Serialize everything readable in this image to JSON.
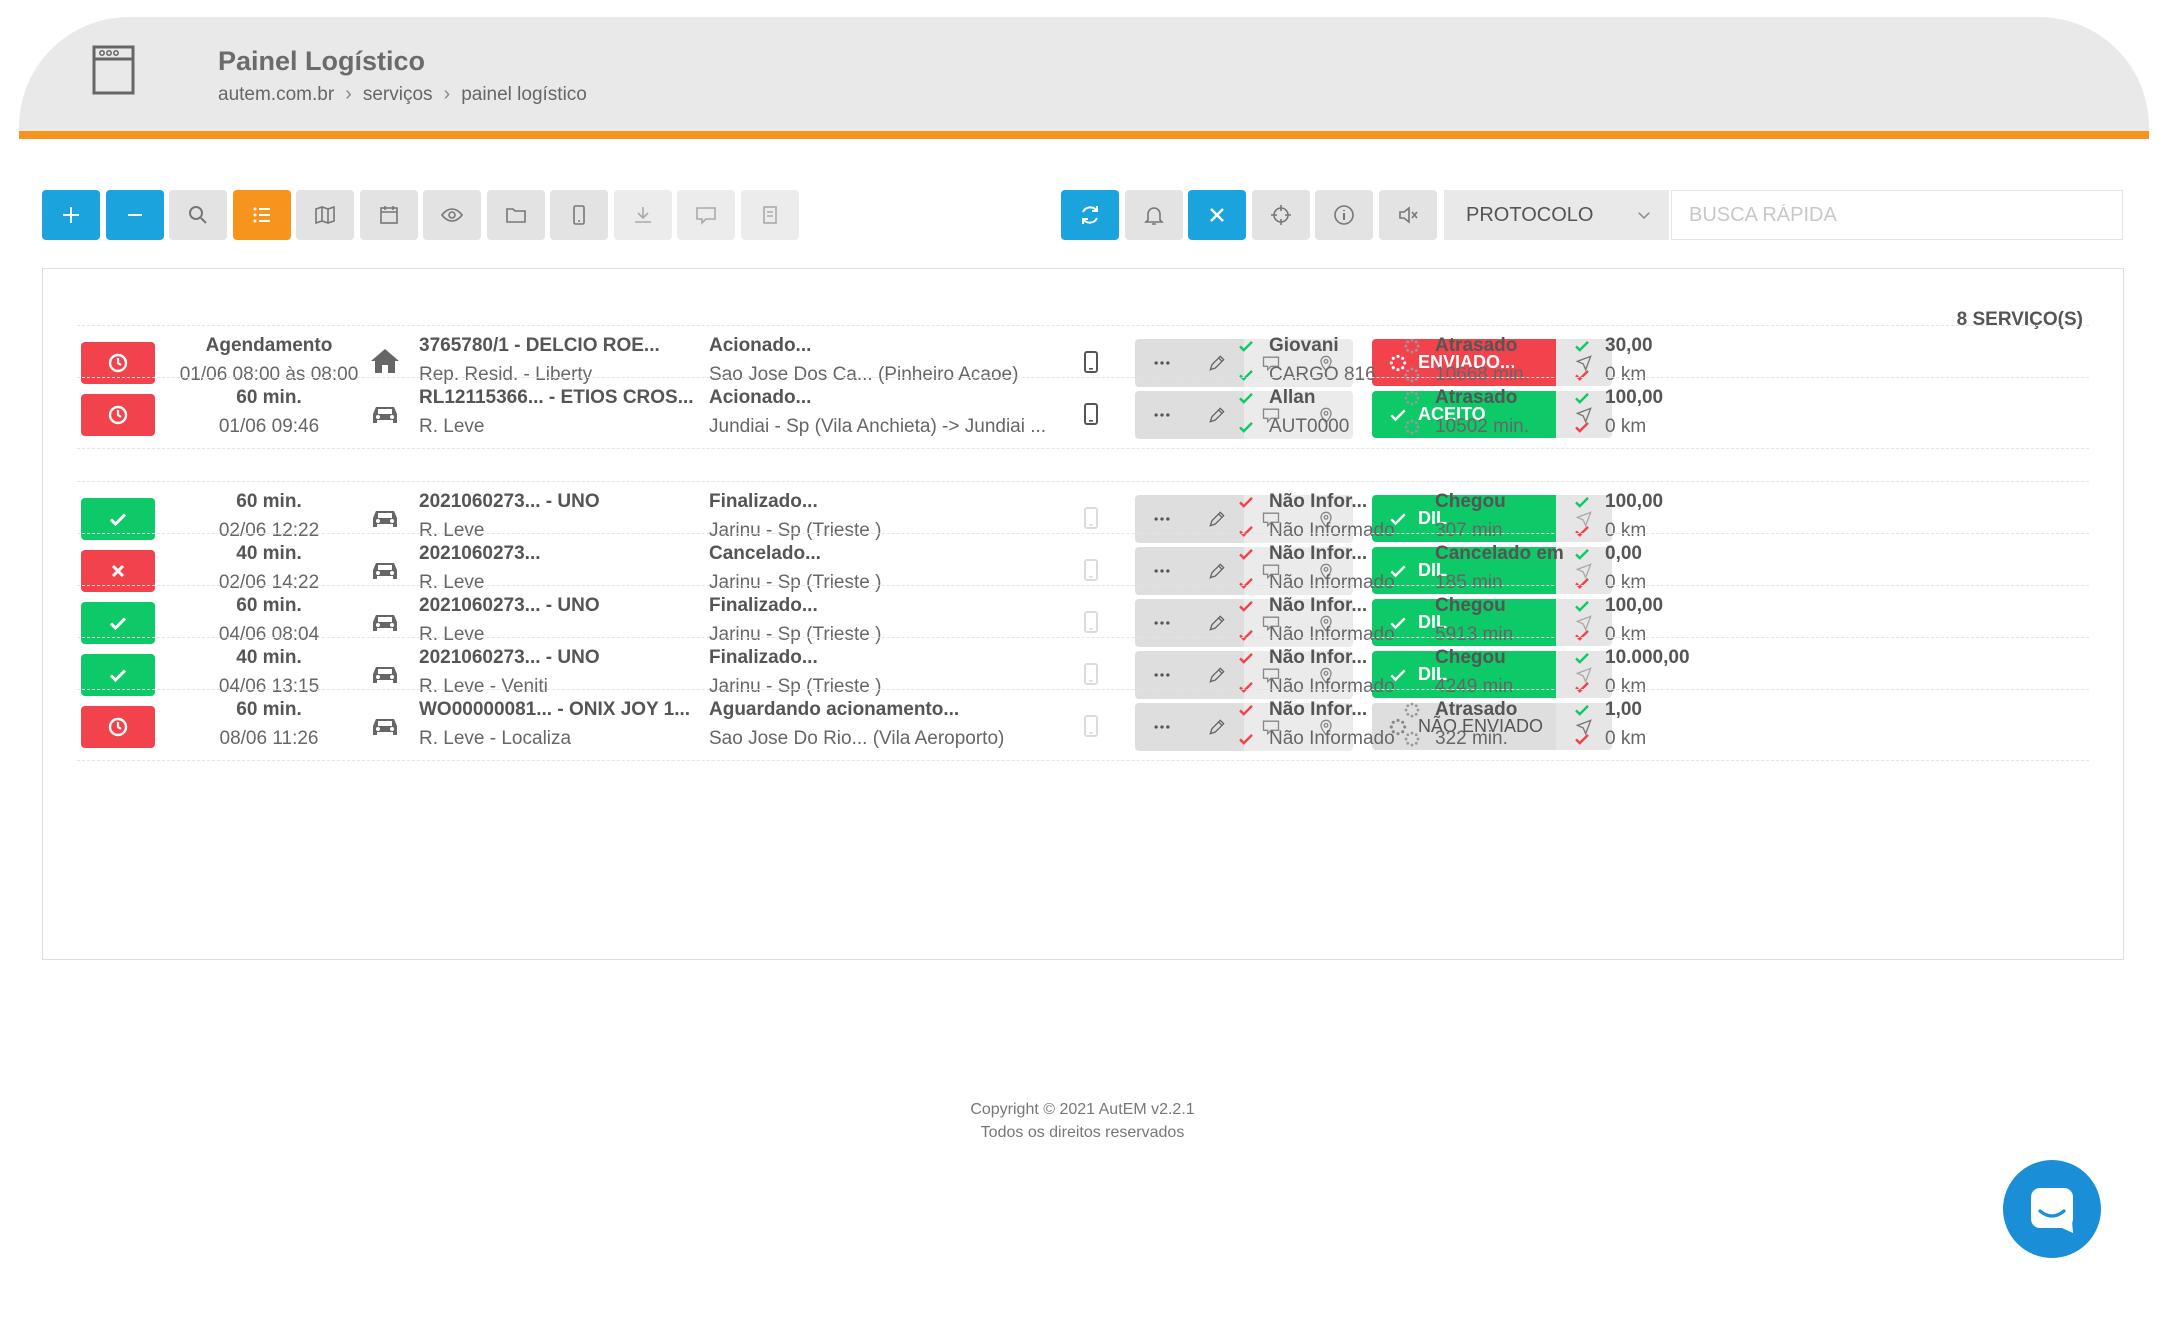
{
  "header": {
    "title": "Painel Logístico",
    "breadcrumb": [
      "autem.com.br",
      "serviços",
      "painel logístico"
    ]
  },
  "toolbar": {
    "left_buttons": [
      {
        "name": "add-button",
        "icon": "plus-icon",
        "variant": "blue"
      },
      {
        "name": "collapse-button",
        "icon": "minus-icon",
        "variant": "blue"
      },
      {
        "name": "search-button",
        "icon": "search-icon",
        "variant": "gray"
      },
      {
        "name": "list-view-button",
        "icon": "list-icon",
        "variant": "orange"
      },
      {
        "name": "map-button",
        "icon": "map-icon",
        "variant": "gray"
      },
      {
        "name": "calendar-button",
        "icon": "calendar-icon",
        "variant": "gray"
      },
      {
        "name": "view-button",
        "icon": "eye-icon",
        "variant": "gray"
      },
      {
        "name": "folder-button",
        "icon": "folder-icon",
        "variant": "gray"
      },
      {
        "name": "mobile-button",
        "icon": "mobile-icon",
        "variant": "gray"
      },
      {
        "name": "download-button",
        "icon": "download-icon",
        "variant": "light"
      },
      {
        "name": "message-button",
        "icon": "chat-icon",
        "variant": "light"
      },
      {
        "name": "document-button",
        "icon": "document-icon",
        "variant": "light"
      }
    ],
    "right_buttons": [
      {
        "name": "refresh-button",
        "icon": "refresh-icon",
        "variant": "blue"
      },
      {
        "name": "notifications-button",
        "icon": "bell-icon",
        "variant": "gray"
      },
      {
        "name": "clear-filter-button",
        "icon": "close-icon",
        "variant": "blue"
      },
      {
        "name": "locate-button",
        "icon": "crosshair-icon",
        "variant": "gray"
      },
      {
        "name": "info-button",
        "icon": "info-icon",
        "variant": "gray"
      },
      {
        "name": "mute-button",
        "icon": "mute-icon",
        "variant": "gray"
      }
    ],
    "protocol_select": "PROTOCOLO",
    "search_placeholder": "BUSCA RÁPIDA"
  },
  "panel": {
    "count_label": "8 SERVIÇO(S)",
    "rows": [
      {
        "status": "red",
        "status_icon": "clock-icon",
        "time_title": "Agendamento",
        "time_sub": "01/06 08:00 às 08:00",
        "type_icon": "home-icon",
        "service_title": "3765780/1 - DELCIO ROE...",
        "service_sub": "Rep. Resid. - Liberty",
        "state_title": "Acionado...",
        "state_sub": "Sao Jose Dos Ca... (Pinheiro Acaoe)",
        "phone_active": true,
        "dispatch": {
          "variant": "red",
          "icon": "spinner-icon",
          "label": "ENVIADO..."
        },
        "provider": [
          {
            "icon": "check-icon",
            "color": "#0ec968",
            "text": "Giovani",
            "bold": true
          },
          {
            "icon": "check-icon",
            "color": "#0ec968",
            "text": "CARGO 816",
            "bold": false
          }
        ],
        "eta": [
          {
            "icon": "spinner-icon",
            "color": "#999999",
            "text": "Atrasado",
            "bold": true
          },
          {
            "icon": "spinner-icon",
            "color": "#999999",
            "text": "10668 min.",
            "bold": false
          }
        ],
        "value": [
          {
            "icon": "check-icon",
            "color": "#0ec968",
            "text": "30,00",
            "bold": true
          },
          {
            "icon": "check-icon",
            "color": "#f2434d",
            "text": "0 km",
            "bold": false
          }
        ]
      },
      {
        "status": "red",
        "status_icon": "clock-icon",
        "time_title": "60 min.",
        "time_sub": "01/06 09:46",
        "type_icon": "car-icon",
        "service_title": "RL12115366... - ETIOS CROS...",
        "service_sub": "R. Leve",
        "state_title": "Acionado...",
        "state_sub": "Jundiai - Sp (Vila Anchieta) -> Jundiai ...",
        "phone_active": true,
        "dispatch": {
          "variant": "green",
          "icon": "check-icon",
          "label": "ACEITO"
        },
        "provider": [
          {
            "icon": "check-icon",
            "color": "#0ec968",
            "text": "Allan",
            "bold": true
          },
          {
            "icon": "check-icon",
            "color": "#0ec968",
            "text": "AUT0000",
            "bold": false
          }
        ],
        "eta": [
          {
            "icon": "spinner-icon",
            "color": "#999999",
            "text": "Atrasado",
            "bold": true
          },
          {
            "icon": "spinner-icon",
            "color": "#999999",
            "text": "10502 min.",
            "bold": false
          }
        ],
        "value": [
          {
            "icon": "check-icon",
            "color": "#0ec968",
            "text": "100,00",
            "bold": true
          },
          {
            "icon": "check-icon",
            "color": "#f2434d",
            "text": "0 km",
            "bold": false
          }
        ]
      },
      {
        "status": "green",
        "status_icon": "check-icon",
        "time_title": "60 min.",
        "time_sub": "02/06 12:22",
        "type_icon": "car-icon",
        "service_title": "2021060273... - UNO",
        "service_sub": "R. Leve",
        "state_title": "Finalizado...",
        "state_sub": "Jarinu - Sp (Trieste )",
        "phone_active": false,
        "dispatch": {
          "variant": "green",
          "icon": "check-icon",
          "label": "DIL"
        },
        "provider": [
          {
            "icon": "check-icon",
            "color": "#f2434d",
            "text": "Não Infor...",
            "bold": true
          },
          {
            "icon": "check-icon",
            "color": "#f2434d",
            "text": "Não Informado",
            "bold": false
          }
        ],
        "eta": [
          {
            "icon": "check-icon",
            "color": "#0ec968",
            "text": "Chegou",
            "bold": true
          },
          {
            "icon": "check-icon",
            "color": "#0ec968",
            "text": "307 min",
            "bold": false
          }
        ],
        "value": [
          {
            "icon": "check-icon",
            "color": "#0ec968",
            "text": "100,00",
            "bold": true
          },
          {
            "icon": "check-icon",
            "color": "#f2434d",
            "text": "0 km",
            "bold": false
          }
        ]
      },
      {
        "status": "red",
        "status_icon": "close-icon",
        "time_title": "40 min.",
        "time_sub": "02/06 14:22",
        "type_icon": "car-icon",
        "service_title": "2021060273...",
        "service_sub": "R. Leve",
        "state_title": "Cancelado...",
        "state_sub": "Jarinu - Sp (Trieste )",
        "phone_active": false,
        "dispatch": {
          "variant": "green",
          "icon": "check-icon",
          "label": "DIL"
        },
        "provider": [
          {
            "icon": "check-icon",
            "color": "#f2434d",
            "text": "Não Infor...",
            "bold": true
          },
          {
            "icon": "check-icon",
            "color": "#f2434d",
            "text": "Não Informado",
            "bold": false
          }
        ],
        "eta": [
          {
            "icon": "check-icon",
            "color": "#0ec968",
            "text": "Cancelado em",
            "bold": true
          },
          {
            "icon": "check-icon",
            "color": "#0ec968",
            "text": "185 min",
            "bold": false
          }
        ],
        "value": [
          {
            "icon": "check-icon",
            "color": "#0ec968",
            "text": "0,00",
            "bold": true
          },
          {
            "icon": "check-icon",
            "color": "#f2434d",
            "text": "0 km",
            "bold": false
          }
        ]
      },
      {
        "status": "green",
        "status_icon": "check-icon",
        "time_title": "60 min.",
        "time_sub": "04/06 08:04",
        "type_icon": "car-icon",
        "service_title": "2021060273... - UNO",
        "service_sub": "R. Leve",
        "state_title": "Finalizado...",
        "state_sub": "Jarinu - Sp (Trieste )",
        "phone_active": false,
        "dispatch": {
          "variant": "green",
          "icon": "check-icon",
          "label": "DIL"
        },
        "provider": [
          {
            "icon": "check-icon",
            "color": "#f2434d",
            "text": "Não Infor...",
            "bold": true
          },
          {
            "icon": "check-icon",
            "color": "#f2434d",
            "text": "Não Informado",
            "bold": false
          }
        ],
        "eta": [
          {
            "icon": "check-icon",
            "color": "#0ec968",
            "text": "Chegou",
            "bold": true
          },
          {
            "icon": "check-icon",
            "color": "#0ec968",
            "text": "5913 min",
            "bold": false
          }
        ],
        "value": [
          {
            "icon": "check-icon",
            "color": "#0ec968",
            "text": "100,00",
            "bold": true
          },
          {
            "icon": "check-icon",
            "color": "#f2434d",
            "text": "0 km",
            "bold": false
          }
        ]
      },
      {
        "status": "green",
        "status_icon": "check-icon",
        "time_title": "40 min.",
        "time_sub": "04/06 13:15",
        "type_icon": "car-icon",
        "service_title": "2021060273... - UNO",
        "service_sub": "R. Leve - Veniti",
        "state_title": "Finalizado...",
        "state_sub": "Jarinu - Sp (Trieste )",
        "phone_active": false,
        "dispatch": {
          "variant": "green",
          "icon": "check-icon",
          "label": "DIL"
        },
        "provider": [
          {
            "icon": "check-icon",
            "color": "#f2434d",
            "text": "Não Infor...",
            "bold": true
          },
          {
            "icon": "check-icon",
            "color": "#f2434d",
            "text": "Não Informado",
            "bold": false
          }
        ],
        "eta": [
          {
            "icon": "check-icon",
            "color": "#0ec968",
            "text": "Chegou",
            "bold": true
          },
          {
            "icon": "check-icon",
            "color": "#0ec968",
            "text": "4249 min",
            "bold": false
          }
        ],
        "value": [
          {
            "icon": "check-icon",
            "color": "#0ec968",
            "text": "10.000,00",
            "bold": true
          },
          {
            "icon": "check-icon",
            "color": "#f2434d",
            "text": "0 km",
            "bold": false
          }
        ]
      },
      {
        "status": "red",
        "status_icon": "clock-icon",
        "time_title": "60 min.",
        "time_sub": "08/06 11:26",
        "type_icon": "car-icon",
        "service_title": "WO00000081... - ONIX JOY 1...",
        "service_sub": "R. Leve - Localiza",
        "state_title": "Aguardando acionamento...",
        "state_sub": "Sao Jose Do Rio... (Vila Aeroporto)",
        "phone_active": false,
        "dispatch": {
          "variant": "gray",
          "icon": "spinner-icon",
          "label": "NÃO ENVIADO"
        },
        "provider": [
          {
            "icon": "check-icon",
            "color": "#f2434d",
            "text": "Não Infor...",
            "bold": true
          },
          {
            "icon": "check-icon",
            "color": "#f2434d",
            "text": "Não Informado",
            "bold": false
          }
        ],
        "eta": [
          {
            "icon": "spinner-icon",
            "color": "#999999",
            "text": "Atrasado",
            "bold": true
          },
          {
            "icon": "spinner-icon",
            "color": "#999999",
            "text": "322 min.",
            "bold": false
          }
        ],
        "value": [
          {
            "icon": "check-icon",
            "color": "#0ec968",
            "text": "1,00",
            "bold": true
          },
          {
            "icon": "check-icon",
            "color": "#f2434d",
            "text": "0 km",
            "bold": false
          }
        ]
      }
    ]
  },
  "footer": {
    "copyright": "Copyright © 2021 AutEM v2.2.1",
    "rights": "Todos os direitos reservados"
  },
  "colors": {
    "accent": "#1aa3dd",
    "brand": "#f7941d",
    "success": "#0ec968",
    "danger": "#f2434d"
  }
}
